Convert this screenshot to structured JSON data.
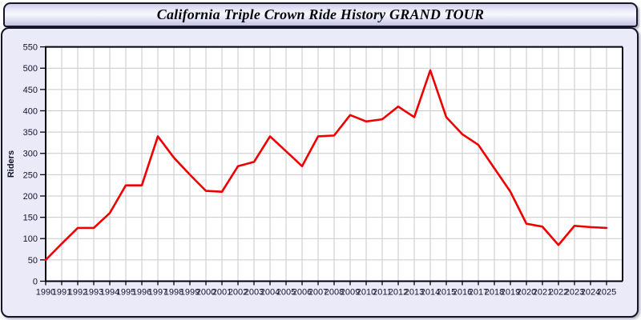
{
  "title": "California Triple Crown Ride History GRAND TOUR",
  "colors": {
    "line": "#ee0000",
    "panel_background": "#eaeaf9",
    "plot_background": "#ffffff",
    "gridline": "#c9c9c9",
    "axis": "#000010",
    "titlebar_top": "#cdcdea",
    "titlebar_middle": "#f7f7fe",
    "titlebar_bottom": "#c3c3e3",
    "border": "#15152a",
    "tick_text": "#14142c"
  },
  "chart_data": {
    "type": "line",
    "title": "California Triple Crown Ride History GRAND TOUR",
    "xlabel": "",
    "ylabel": "Riders",
    "ylim": [
      0,
      550
    ],
    "ytick_step": 50,
    "yticks": [
      0,
      50,
      100,
      150,
      200,
      250,
      300,
      350,
      400,
      450,
      500,
      550
    ],
    "grid": true,
    "legend_position": "none",
    "x": [
      1990,
      1991,
      1992,
      1993,
      1994,
      1995,
      1996,
      1997,
      1998,
      1999,
      2000,
      2001,
      2002,
      2003,
      2004,
      2005,
      2006,
      2007,
      2008,
      2009,
      2010,
      2011,
      2012,
      2013,
      2014,
      2015,
      2016,
      2017,
      2018,
      2019,
      2020,
      2021,
      2022,
      2023,
      2024,
      2025
    ],
    "series": [
      {
        "name": "Riders",
        "values": [
          50,
          88,
          125,
          125,
          160,
          225,
          225,
          340,
          290,
          250,
          212,
          210,
          270,
          280,
          340,
          305,
          270,
          340,
          342,
          390,
          375,
          380,
          410,
          385,
          495,
          385,
          345,
          320,
          265,
          210,
          135,
          128,
          85,
          130,
          127,
          125
        ]
      }
    ]
  }
}
